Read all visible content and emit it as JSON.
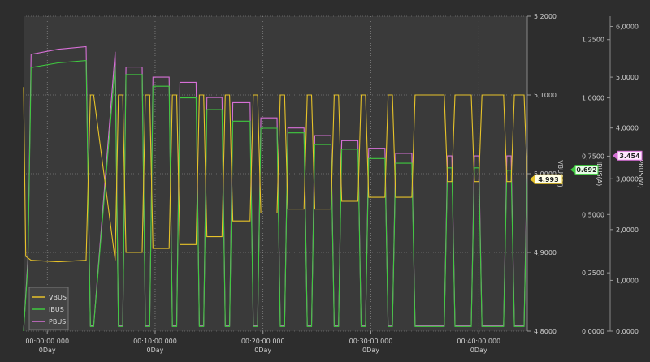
{
  "chart_data": {
    "type": "line",
    "x_ticks": [
      {
        "time": "00:00:00.000",
        "day": "0Day"
      },
      {
        "time": "00:10:00.000",
        "day": "0Day"
      },
      {
        "time": "00:20:00.000",
        "day": "0Day"
      },
      {
        "time": "00:30:00.000",
        "day": "0Day"
      },
      {
        "time": "00:40:00.000",
        "day": "0Day"
      }
    ],
    "x_range_minutes": [
      -2.2,
      44.5
    ],
    "grid": true,
    "legend": {
      "placement": "bottom-left",
      "entries": [
        "VBUS",
        "IBUS",
        "PBUS"
      ]
    },
    "axes": {
      "vbus": {
        "label": "VBUS(V)",
        "ylim": [
          4.8,
          5.2
        ],
        "ticks": [
          "5,2000",
          "5,1000",
          "5,0000",
          "4,9000",
          "4,8000"
        ]
      },
      "ibus": {
        "label": "IBUS(A)",
        "ylim": [
          0,
          1.35
        ],
        "ticks": [
          "1,2500",
          "1,0000",
          "0,7500",
          "0,5000",
          "0,2500",
          "0,0000"
        ]
      },
      "pbus": {
        "label": "PBUS(W)",
        "ylim": [
          0,
          6.2
        ],
        "ticks": [
          "6,0000",
          "5,0000",
          "4,0000",
          "3,0000",
          "2,0000",
          "1,0000",
          "0,0000"
        ]
      }
    },
    "markers": {
      "vbus": "4.993",
      "ibus": "0.692",
      "pbus": "3.454"
    },
    "series": [
      {
        "name": "VBUS",
        "axis": "vbus",
        "color": "#e6c229",
        "x": [
          -2.2,
          -2.0,
          -1.5,
          1.0,
          3.6,
          4.0,
          4.3,
          6.3,
          6.6,
          7.0,
          7.3,
          8.8,
          9.1,
          9.5,
          9.8,
          11.3,
          11.6,
          12.0,
          12.3,
          13.8,
          14.1,
          14.5,
          14.8,
          16.2,
          16.5,
          16.9,
          17.2,
          18.8,
          19.1,
          19.5,
          19.8,
          21.3,
          21.6,
          22.0,
          22.3,
          23.8,
          24.1,
          24.5,
          24.8,
          26.3,
          26.6,
          27.0,
          27.3,
          28.8,
          29.1,
          29.5,
          29.8,
          31.3,
          31.6,
          32.0,
          32.3,
          33.8,
          34.1,
          34.5,
          34.8,
          36.8,
          37.1,
          37.5,
          37.8,
          39.3,
          39.6,
          40.0,
          40.3,
          42.3,
          42.6,
          43.0,
          43.3,
          44.2,
          44.5
        ],
        "y": [
          5.11,
          4.895,
          4.89,
          4.888,
          4.89,
          5.1,
          5.1,
          4.89,
          5.1,
          5.1,
          4.9,
          4.9,
          5.1,
          5.1,
          4.905,
          4.905,
          5.1,
          5.1,
          4.91,
          4.91,
          5.1,
          5.1,
          4.92,
          4.92,
          5.1,
          5.1,
          4.94,
          4.94,
          5.1,
          5.1,
          4.95,
          4.95,
          5.1,
          5.1,
          4.955,
          4.955,
          5.1,
          5.1,
          4.955,
          4.955,
          5.1,
          5.1,
          4.965,
          4.965,
          5.1,
          5.1,
          4.97,
          4.97,
          5.1,
          5.1,
          4.97,
          4.97,
          5.1,
          5.1,
          5.1,
          5.1,
          4.99,
          4.99,
          5.1,
          5.1,
          4.99,
          4.99,
          5.1,
          5.1,
          4.99,
          4.99,
          5.1,
          5.1,
          4.993
        ]
      },
      {
        "name": "IBUS",
        "axis": "ibus",
        "color": "#3fc93f",
        "x": [
          -2.2,
          -1.8,
          -1.5,
          1.0,
          3.6,
          4.0,
          4.3,
          6.3,
          6.6,
          7.0,
          7.3,
          8.8,
          9.1,
          9.5,
          9.8,
          11.3,
          11.6,
          12.0,
          12.3,
          13.8,
          14.1,
          14.5,
          14.8,
          16.2,
          16.5,
          16.9,
          17.2,
          18.8,
          19.1,
          19.5,
          19.8,
          21.3,
          21.6,
          22.0,
          22.3,
          23.8,
          24.1,
          24.5,
          24.8,
          26.3,
          26.6,
          27.0,
          27.3,
          28.8,
          29.1,
          29.5,
          29.8,
          31.3,
          31.6,
          32.0,
          32.3,
          33.8,
          34.1,
          34.5,
          34.8,
          36.8,
          37.1,
          37.5,
          37.8,
          39.3,
          39.6,
          40.0,
          40.3,
          42.3,
          42.6,
          43.0,
          43.3,
          44.2,
          44.5
        ],
        "y": [
          0.0,
          0.28,
          1.13,
          1.15,
          1.16,
          0.02,
          0.02,
          1.14,
          0.02,
          0.02,
          1.1,
          1.1,
          0.02,
          0.02,
          1.05,
          1.05,
          0.02,
          0.02,
          1.0,
          1.0,
          0.02,
          0.02,
          0.95,
          0.95,
          0.02,
          0.02,
          0.9,
          0.9,
          0.02,
          0.02,
          0.87,
          0.87,
          0.02,
          0.02,
          0.85,
          0.85,
          0.02,
          0.02,
          0.8,
          0.8,
          0.02,
          0.02,
          0.78,
          0.78,
          0.02,
          0.02,
          0.74,
          0.74,
          0.02,
          0.02,
          0.72,
          0.72,
          0.02,
          0.02,
          0.02,
          0.02,
          0.7,
          0.7,
          0.02,
          0.02,
          0.7,
          0.7,
          0.02,
          0.02,
          0.69,
          0.69,
          0.02,
          0.02,
          0.692
        ]
      },
      {
        "name": "PBUS",
        "axis": "pbus",
        "color": "#d770d7",
        "x": [
          -2.2,
          -1.8,
          -1.5,
          1.0,
          3.6,
          4.0,
          4.3,
          6.3,
          6.6,
          7.0,
          7.3,
          8.8,
          9.1,
          9.5,
          9.8,
          11.3,
          11.6,
          12.0,
          12.3,
          13.8,
          14.1,
          14.5,
          14.8,
          16.2,
          16.5,
          16.9,
          17.2,
          18.8,
          19.1,
          19.5,
          19.8,
          21.3,
          21.6,
          22.0,
          22.3,
          23.8,
          24.1,
          24.5,
          24.8,
          26.3,
          26.6,
          27.0,
          27.3,
          28.8,
          29.1,
          29.5,
          29.8,
          31.3,
          31.6,
          32.0,
          32.3,
          33.8,
          34.1,
          34.5,
          34.8,
          36.8,
          37.1,
          37.5,
          37.8,
          39.3,
          39.6,
          40.0,
          40.3,
          42.3,
          42.6,
          43.0,
          43.3,
          44.2,
          44.5
        ],
        "y": [
          0.0,
          1.4,
          5.45,
          5.55,
          5.6,
          0.1,
          0.1,
          5.5,
          0.1,
          0.1,
          5.2,
          5.2,
          0.1,
          0.1,
          5.0,
          5.0,
          0.1,
          0.1,
          4.9,
          4.9,
          0.1,
          0.1,
          4.6,
          4.6,
          0.1,
          0.1,
          4.5,
          4.5,
          0.1,
          0.1,
          4.2,
          4.2,
          0.1,
          0.1,
          4.0,
          4.0,
          0.1,
          0.1,
          3.85,
          3.85,
          0.1,
          0.1,
          3.75,
          3.75,
          0.1,
          0.1,
          3.6,
          3.6,
          0.1,
          0.1,
          3.5,
          3.5,
          0.1,
          0.1,
          0.1,
          0.1,
          3.45,
          3.45,
          0.1,
          0.1,
          3.45,
          3.45,
          0.1,
          0.1,
          3.45,
          3.45,
          0.1,
          0.1,
          3.454
        ]
      }
    ]
  }
}
